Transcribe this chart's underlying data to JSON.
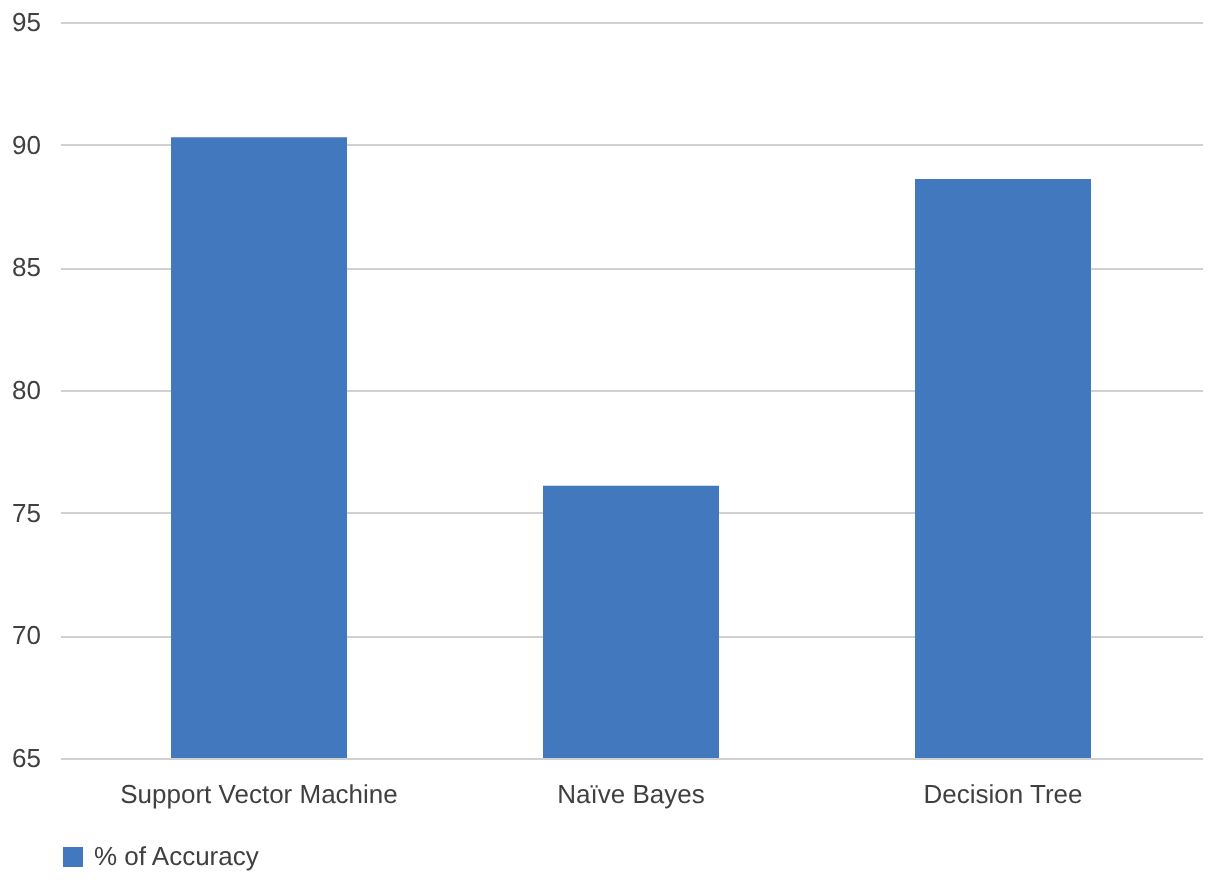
{
  "chart_data": {
    "type": "bar",
    "categories": [
      "Support Vector Machine",
      "Naïve Bayes",
      "Decision Tree"
    ],
    "series": [
      {
        "name": "% of Accuracy",
        "color": "#4178be",
        "values": [
          90.3,
          76.1,
          88.6
        ]
      }
    ],
    "ylim": [
      65,
      95
    ],
    "yticks": [
      65,
      70,
      75,
      80,
      85,
      90,
      95
    ],
    "grid": "y",
    "legend": "bottom"
  }
}
